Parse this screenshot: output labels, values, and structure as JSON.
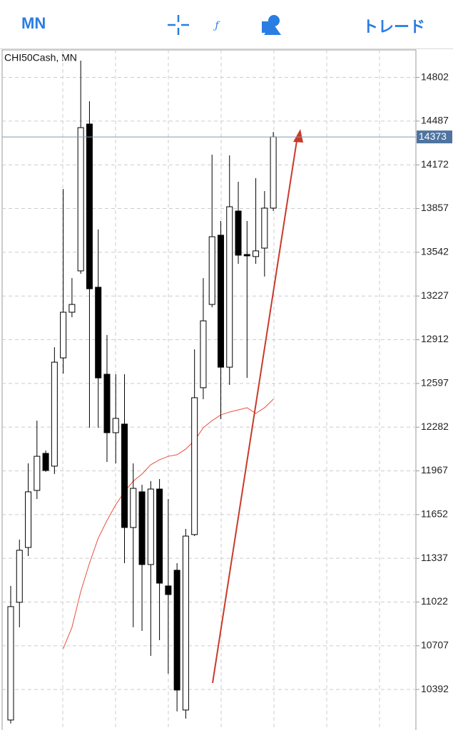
{
  "toolbar": {
    "timeframe": "MN",
    "trade": "トレード"
  },
  "chart_data": {
    "type": "candlestick",
    "title": "CHI50Cash, MN",
    "open": [
      10172,
      11020,
      11415,
      11826,
      12093,
      12001,
      12781,
      13110,
      13408,
      14466,
      13290,
      12663,
      12242,
      12304,
      11559,
      11816,
      11292,
      11836,
      11138,
      11251,
      10244,
      11508,
      12566,
      13166,
      13665,
      12714,
      13839,
      13526,
      13511,
      13572,
      13860
    ],
    "high": [
      11138,
      11472,
      12021,
      12329,
      12114,
      12858,
      13998,
      13356,
      14923,
      14630,
      13706,
      12946,
      12663,
      12663,
      12021,
      11867,
      11893,
      11908,
      11764,
      11302,
      11549,
      12843,
      13356,
      14245,
      13767,
      14240,
      14050,
      13767,
      14076,
      13983,
      14409
    ],
    "low": [
      10147,
      10840,
      11353,
      11764,
      11960,
      11944,
      12668,
      13074,
      13387,
      12278,
      12278,
      12031,
      12021,
      11302,
      10840,
      10814,
      10634,
      10747,
      10506,
      10234,
      10182,
      11497,
      12483,
      13146,
      12340,
      12586,
      13459,
      12637,
      13459,
      13367,
      13840
    ],
    "close": [
      10989,
      11395,
      11816,
      12072,
      11970,
      12750,
      13110,
      13166,
      14440,
      13279,
      12637,
      12242,
      12345,
      11559,
      11841,
      11292,
      11836,
      11158,
      11076,
      10388,
      11497,
      12494,
      13048,
      13654,
      12714,
      13870,
      13521,
      13516,
      13552,
      13860,
      14373
    ],
    "moving_average": {
      "color": "#e8503f",
      "values": [
        null,
        null,
        null,
        null,
        null,
        null,
        10686,
        10840,
        11097,
        11302,
        11482,
        11610,
        11723,
        11816,
        11893,
        11944,
        12011,
        12047,
        12072,
        12083,
        12124,
        12186,
        12278,
        12329,
        12370,
        12391,
        12406,
        12422,
        12381,
        12422,
        12483
      ]
    },
    "current_price": 14373,
    "ylim": [
      10100,
      15000
    ],
    "yticks": [
      14802,
      14487,
      14172,
      13857,
      13542,
      13227,
      12912,
      12597,
      12282,
      11967,
      11652,
      11337,
      11022,
      10707,
      10392
    ],
    "grid": true
  }
}
